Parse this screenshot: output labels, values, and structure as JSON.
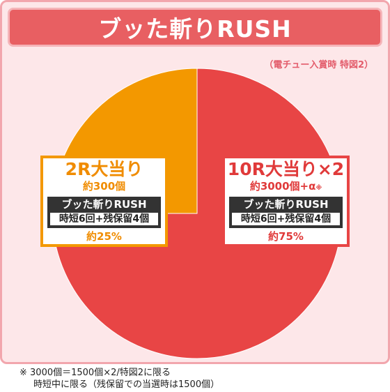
{
  "title": "ブッた斬りRUSH",
  "condition_note": "（電チュー入賞時 特図2）",
  "chart_data": {
    "type": "pie",
    "title": "ブッた斬りRUSH",
    "slices": [
      {
        "label": "10R大当り×2",
        "value": 75,
        "pct_label": "約75%",
        "balls": "約3000個+α",
        "balls_mark": "※",
        "mode": "ブッた斬りRUSH",
        "detail": "時短6回+残保留4個",
        "color": "#e84545"
      },
      {
        "label": "2R大当り",
        "value": 25,
        "pct_label": "約25%",
        "balls": "約300個",
        "balls_mark": "",
        "mode": "ブッた斬りRUSH",
        "detail": "時短6回+残保留4個",
        "color": "#f39800"
      }
    ]
  },
  "footnote": {
    "line1": "※ 3000個＝1500個×2/特図2に限る",
    "line2": "時短中に限る（残保留での当選時は1500個）"
  }
}
